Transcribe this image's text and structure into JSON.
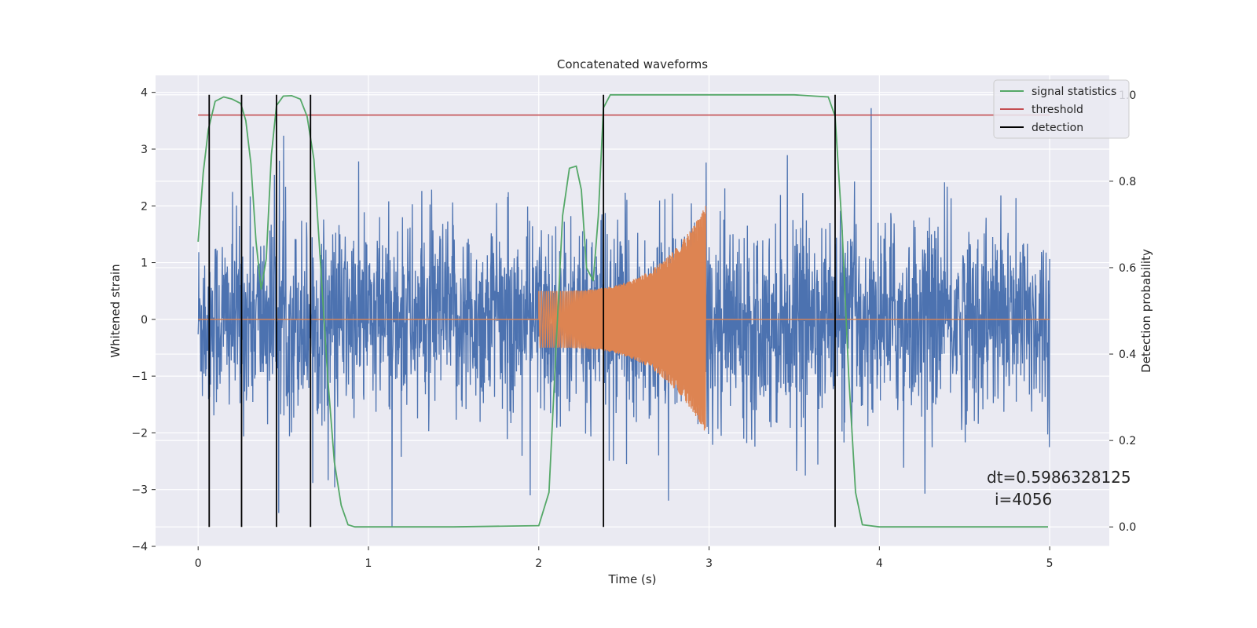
{
  "chart_data": {
    "type": "line",
    "title": "Concatenated waveforms",
    "xlabel": "Time (s)",
    "ylabel": "Whitened strain",
    "y2label": "Detection probability",
    "xlim": [
      -0.25,
      5.35
    ],
    "ylim": [
      -4.0,
      4.3
    ],
    "y2lim": [
      -0.045,
      1.045
    ],
    "xticks": [
      0,
      1,
      2,
      3,
      4,
      5
    ],
    "yticks": [
      -4,
      -3,
      -2,
      -1,
      0,
      1,
      2,
      3,
      4
    ],
    "y2ticks": [
      0.0,
      0.2,
      0.4,
      0.6,
      0.8,
      1.0
    ],
    "xtick_labels": [
      "0",
      "1",
      "2",
      "3",
      "4",
      "5"
    ],
    "ytick_labels": [
      "−4",
      "−3",
      "−2",
      "−1",
      "0",
      "1",
      "2",
      "3",
      "4"
    ],
    "y2tick_labels": [
      "0.0",
      "0.2",
      "0.4",
      "0.6",
      "0.8",
      "1.0"
    ],
    "grid": true,
    "legend_position": "top-right",
    "series": [
      {
        "name": "",
        "color": "#4c72b0",
        "axis": "left",
        "kind": "noise",
        "x_range": [
          0,
          5
        ],
        "envelope": [
          -2.0,
          2.0
        ]
      },
      {
        "name": "",
        "color": "#dd8452",
        "axis": "left",
        "kind": "chirp",
        "x_range": [
          2.0,
          2.98
        ],
        "amplitude": [
          0.5,
          2.0
        ]
      },
      {
        "name": "signal statistics",
        "color": "#55a868",
        "axis": "right",
        "x": [
          0.0,
          0.03,
          0.06,
          0.1,
          0.15,
          0.2,
          0.25,
          0.28,
          0.31,
          0.34,
          0.37,
          0.4,
          0.43,
          0.46,
          0.5,
          0.55,
          0.6,
          0.64,
          0.68,
          0.72,
          0.76,
          0.8,
          0.84,
          0.88,
          0.92,
          1.0,
          1.5,
          2.0,
          2.06,
          2.1,
          2.14,
          2.18,
          2.22,
          2.25,
          2.28,
          2.32,
          2.35,
          2.38,
          2.42,
          2.46,
          3.0,
          3.5,
          3.7,
          3.74,
          3.78,
          3.82,
          3.86,
          3.9,
          4.0,
          4.5,
          4.99
        ],
        "values": [
          0.66,
          0.82,
          0.92,
          0.985,
          0.995,
          0.99,
          0.98,
          0.94,
          0.84,
          0.66,
          0.55,
          0.62,
          0.86,
          0.975,
          0.997,
          0.998,
          0.99,
          0.95,
          0.85,
          0.6,
          0.35,
          0.15,
          0.05,
          0.005,
          0.0,
          0.0,
          0.0,
          0.003,
          0.08,
          0.4,
          0.72,
          0.83,
          0.835,
          0.78,
          0.6,
          0.57,
          0.72,
          0.97,
          1.0,
          1.0,
          1.0,
          1.0,
          0.995,
          0.95,
          0.7,
          0.35,
          0.08,
          0.005,
          0.0,
          0.0,
          0.0
        ]
      },
      {
        "name": "threshold",
        "color": "#c44e52",
        "axis": "left",
        "x": [
          0,
          5
        ],
        "values": [
          3.6,
          3.6
        ]
      }
    ],
    "detections": {
      "name": "detection",
      "color": "#000000",
      "x": [
        0.065,
        0.255,
        0.46,
        0.66,
        2.38,
        3.74
      ],
      "y_range": [
        0.0,
        1.0
      ]
    },
    "annotation": {
      "line1": "dt=0.5986328125",
      "line2": "i=4056",
      "x": 4.5,
      "y": -2.85
    }
  },
  "colors": {
    "background": "#eaeaf2",
    "grid": "#ffffff",
    "text": "#262626"
  }
}
